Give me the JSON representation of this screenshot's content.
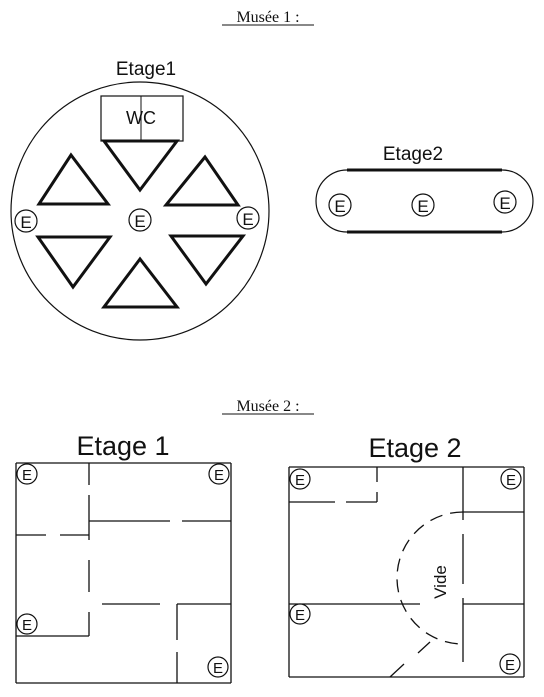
{
  "museum1": {
    "heading": "Musée 1 :",
    "floor1": {
      "label": "Etage1",
      "wc": "WC",
      "entrances": [
        "E",
        "E",
        "E"
      ]
    },
    "floor2": {
      "label": "Etage2",
      "entrances": [
        "E",
        "E",
        "E"
      ]
    }
  },
  "museum2": {
    "heading": "Musée 2 :",
    "floor1": {
      "label": "Etage 1",
      "entrances": [
        "E",
        "E",
        "E",
        "E"
      ]
    },
    "floor2": {
      "label": "Etage 2",
      "void_label": "Vide",
      "entrances": [
        "E",
        "E",
        "E",
        "E"
      ]
    }
  }
}
